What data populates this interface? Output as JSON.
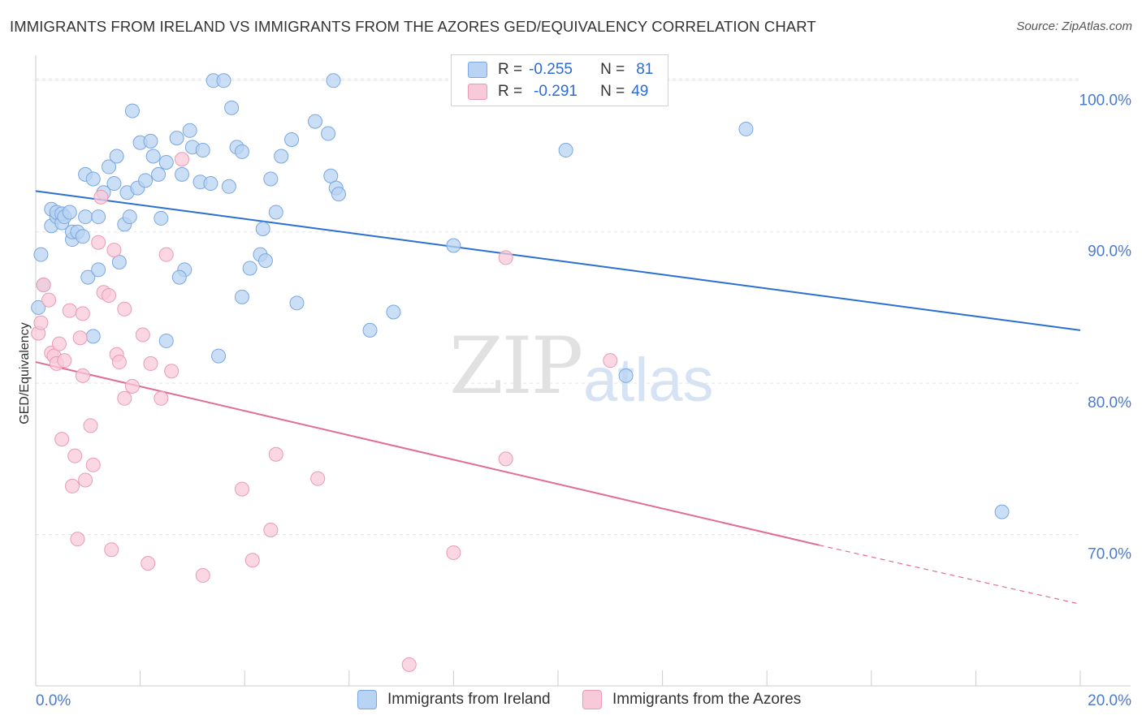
{
  "header": {
    "title": "IMMIGRANTS FROM IRELAND VS IMMIGRANTS FROM THE AZORES GED/EQUIVALENCY CORRELATION CHART",
    "source": "Source: ZipAtlas.com"
  },
  "watermark": {
    "zip": "ZIP",
    "atlas": "atlas"
  },
  "legend": {
    "ireland": {
      "r_label": "R =",
      "r_value": "-0.255",
      "n_label": "N =",
      "n_value": "81"
    },
    "azores": {
      "r_label": "R =",
      "r_value": "-0.291",
      "n_label": "N =",
      "n_value": "49"
    }
  },
  "bottom_legend": {
    "ireland": "Immigrants from Ireland",
    "azores": "Immigrants from the Azores"
  },
  "colors": {
    "ireland_fill": "#b8d3f3",
    "ireland_stroke": "#7aa7e0",
    "ireland_line": "#2b6fd1",
    "azores_fill": "#f8c9d8",
    "azores_stroke": "#ea9ab5",
    "azores_line": "#e06c97",
    "tick_label": "#4a7bd0",
    "grid": "#e3e3e3"
  },
  "chart_data": {
    "type": "scatter",
    "title": "IMMIGRANTS FROM IRELAND VS IMMIGRANTS FROM THE AZORES GED/EQUIVALENCY CORRELATION CHART",
    "xlabel": "",
    "ylabel": "GED/Equivalency",
    "x_tick_labels": [
      "0.0%",
      "20.0%"
    ],
    "y_tick_labels": [
      "100.0%",
      "90.0%",
      "80.0%",
      "70.0%"
    ],
    "y_ticks": [
      100,
      90,
      80,
      70
    ],
    "xlim": [
      0,
      20
    ],
    "ylim": [
      60,
      102
    ],
    "grid": true,
    "legend_position": "top-center",
    "series": [
      {
        "name": "Immigrants from Ireland",
        "r": -0.255,
        "n": 81,
        "trend": {
          "x0": 0,
          "y0": 92.7,
          "x1": 20,
          "y1": 83.5
        },
        "points": [
          [
            0.1,
            88.5
          ],
          [
            0.15,
            86.5
          ],
          [
            0.3,
            91.5
          ],
          [
            0.3,
            90.4
          ],
          [
            0.4,
            91.0
          ],
          [
            0.4,
            91.3
          ],
          [
            0.5,
            90.6
          ],
          [
            0.5,
            91.2
          ],
          [
            0.55,
            91.0
          ],
          [
            0.65,
            91.3
          ],
          [
            0.7,
            89.5
          ],
          [
            0.7,
            90.0
          ],
          [
            0.8,
            90.0
          ],
          [
            0.9,
            89.7
          ],
          [
            0.95,
            91.0
          ],
          [
            0.95,
            93.8
          ],
          [
            1.0,
            87.0
          ],
          [
            1.1,
            93.5
          ],
          [
            1.1,
            83.1
          ],
          [
            1.2,
            87.5
          ],
          [
            1.2,
            91.0
          ],
          [
            1.3,
            92.6
          ],
          [
            1.4,
            94.3
          ],
          [
            1.5,
            93.2
          ],
          [
            1.55,
            95.0
          ],
          [
            1.6,
            88.0
          ],
          [
            1.7,
            90.5
          ],
          [
            1.75,
            92.6
          ],
          [
            1.8,
            91.0
          ],
          [
            1.85,
            98.0
          ],
          [
            1.95,
            92.9
          ],
          [
            2.0,
            95.9
          ],
          [
            2.1,
            93.4
          ],
          [
            2.2,
            96.0
          ],
          [
            2.25,
            95.0
          ],
          [
            2.35,
            93.8
          ],
          [
            2.4,
            90.9
          ],
          [
            2.5,
            94.6
          ],
          [
            2.5,
            82.8
          ],
          [
            2.7,
            96.2
          ],
          [
            2.8,
            93.8
          ],
          [
            2.85,
            87.5
          ],
          [
            2.95,
            96.7
          ],
          [
            2.75,
            87.0
          ],
          [
            3.0,
            95.6
          ],
          [
            3.15,
            93.3
          ],
          [
            3.2,
            95.4
          ],
          [
            3.35,
            93.2
          ],
          [
            3.5,
            81.8
          ],
          [
            3.7,
            93.0
          ],
          [
            3.75,
            98.2
          ],
          [
            3.85,
            95.6
          ],
          [
            3.95,
            95.3
          ],
          [
            3.4,
            100.0
          ],
          [
            3.6,
            100.0
          ],
          [
            3.95,
            85.7
          ],
          [
            4.1,
            87.6
          ],
          [
            4.3,
            88.5
          ],
          [
            4.35,
            90.2
          ],
          [
            4.4,
            88.1
          ],
          [
            4.5,
            93.5
          ],
          [
            4.6,
            91.3
          ],
          [
            4.7,
            95.0
          ],
          [
            4.9,
            96.1
          ],
          [
            5.0,
            85.3
          ],
          [
            5.35,
            97.3
          ],
          [
            5.6,
            96.5
          ],
          [
            5.65,
            93.7
          ],
          [
            5.75,
            92.9
          ],
          [
            5.8,
            92.5
          ],
          [
            5.7,
            100.0
          ],
          [
            6.4,
            83.5
          ],
          [
            6.85,
            84.7
          ],
          [
            8.0,
            89.1
          ],
          [
            10.15,
            95.4
          ],
          [
            11.3,
            80.5
          ],
          [
            13.6,
            96.8
          ],
          [
            18.5,
            71.5
          ],
          [
            0.05,
            85.0
          ]
        ]
      },
      {
        "name": "Immigrants from the Azores",
        "r": -0.291,
        "n": 49,
        "trend": {
          "x0": 0,
          "y0": 81.4,
          "x1": 15,
          "y1": 69.3,
          "dash_to_x": 20,
          "dash_to_y": 65.4
        },
        "points": [
          [
            0.05,
            83.3
          ],
          [
            0.1,
            84.0
          ],
          [
            0.15,
            86.5
          ],
          [
            0.25,
            85.5
          ],
          [
            0.3,
            82.0
          ],
          [
            0.35,
            81.8
          ],
          [
            0.4,
            81.3
          ],
          [
            0.45,
            82.6
          ],
          [
            0.5,
            76.3
          ],
          [
            0.55,
            81.5
          ],
          [
            0.65,
            84.8
          ],
          [
            0.7,
            73.2
          ],
          [
            0.75,
            75.2
          ],
          [
            0.8,
            69.7
          ],
          [
            0.85,
            83.0
          ],
          [
            0.9,
            84.6
          ],
          [
            0.9,
            80.5
          ],
          [
            0.95,
            73.6
          ],
          [
            1.05,
            77.2
          ],
          [
            1.1,
            74.6
          ],
          [
            1.2,
            89.3
          ],
          [
            1.25,
            92.3
          ],
          [
            1.3,
            86.0
          ],
          [
            1.4,
            85.8
          ],
          [
            1.45,
            69.0
          ],
          [
            1.5,
            88.8
          ],
          [
            1.55,
            81.9
          ],
          [
            1.6,
            81.4
          ],
          [
            1.7,
            79.0
          ],
          [
            1.7,
            84.9
          ],
          [
            1.85,
            79.8
          ],
          [
            2.05,
            83.2
          ],
          [
            2.15,
            68.1
          ],
          [
            2.2,
            81.3
          ],
          [
            2.4,
            79.0
          ],
          [
            2.5,
            88.5
          ],
          [
            2.6,
            80.8
          ],
          [
            2.8,
            94.8
          ],
          [
            3.2,
            67.3
          ],
          [
            3.95,
            73.0
          ],
          [
            4.15,
            68.3
          ],
          [
            4.5,
            70.3
          ],
          [
            4.6,
            75.3
          ],
          [
            5.4,
            73.7
          ],
          [
            7.15,
            61.4
          ],
          [
            8.0,
            68.8
          ],
          [
            9.0,
            88.3
          ],
          [
            9.0,
            75.0
          ],
          [
            11.0,
            81.5
          ]
        ]
      }
    ]
  }
}
